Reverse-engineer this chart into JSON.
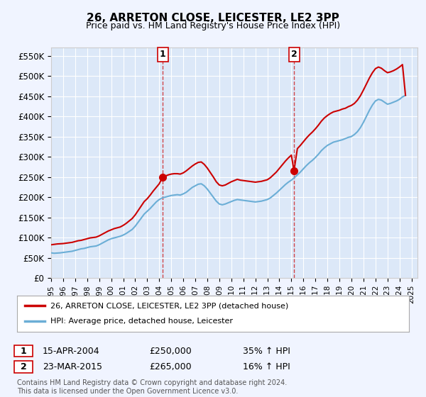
{
  "title": "26, ARRETON CLOSE, LEICESTER, LE2 3PP",
  "subtitle": "Price paid vs. HM Land Registry's House Price Index (HPI)",
  "background_color": "#f0f4ff",
  "plot_bg_color": "#dce8f8",
  "ylim": [
    0,
    570000
  ],
  "yticks": [
    0,
    50000,
    100000,
    150000,
    200000,
    250000,
    300000,
    350000,
    400000,
    450000,
    500000,
    550000
  ],
  "ytick_labels": [
    "£0",
    "£50K",
    "£100K",
    "£150K",
    "£200K",
    "£250K",
    "£300K",
    "£350K",
    "£400K",
    "£450K",
    "£500K",
    "£550K"
  ],
  "hpi_color": "#6baed6",
  "price_color": "#cc0000",
  "marker1_year": 2004.29,
  "marker2_year": 2015.22,
  "marker1_price": 250000,
  "marker2_price": 265000,
  "legend_label_price": "26, ARRETON CLOSE, LEICESTER, LE2 3PP (detached house)",
  "legend_label_hpi": "HPI: Average price, detached house, Leicester",
  "table_row1": [
    "1",
    "15-APR-2004",
    "£250,000",
    "35% ↑ HPI"
  ],
  "table_row2": [
    "2",
    "23-MAR-2015",
    "£265,000",
    "16% ↑ HPI"
  ],
  "footnote": "Contains HM Land Registry data © Crown copyright and database right 2024.\nThis data is licensed under the Open Government Licence v3.0.",
  "hpi_data_x": [
    1995.0,
    1995.25,
    1995.5,
    1995.75,
    1996.0,
    1996.25,
    1996.5,
    1996.75,
    1997.0,
    1997.25,
    1997.5,
    1997.75,
    1998.0,
    1998.25,
    1998.5,
    1998.75,
    1999.0,
    1999.25,
    1999.5,
    1999.75,
    2000.0,
    2000.25,
    2000.5,
    2000.75,
    2001.0,
    2001.25,
    2001.5,
    2001.75,
    2002.0,
    2002.25,
    2002.5,
    2002.75,
    2003.0,
    2003.25,
    2003.5,
    2003.75,
    2004.0,
    2004.25,
    2004.5,
    2004.75,
    2005.0,
    2005.25,
    2005.5,
    2005.75,
    2006.0,
    2006.25,
    2006.5,
    2006.75,
    2007.0,
    2007.25,
    2007.5,
    2007.75,
    2008.0,
    2008.25,
    2008.5,
    2008.75,
    2009.0,
    2009.25,
    2009.5,
    2009.75,
    2010.0,
    2010.25,
    2010.5,
    2010.75,
    2011.0,
    2011.25,
    2011.5,
    2011.75,
    2012.0,
    2012.25,
    2012.5,
    2012.75,
    2013.0,
    2013.25,
    2013.5,
    2013.75,
    2014.0,
    2014.25,
    2014.5,
    2014.75,
    2015.0,
    2015.25,
    2015.5,
    2015.75,
    2016.0,
    2016.25,
    2016.5,
    2016.75,
    2017.0,
    2017.25,
    2017.5,
    2017.75,
    2018.0,
    2018.25,
    2018.5,
    2018.75,
    2019.0,
    2019.25,
    2019.5,
    2019.75,
    2020.0,
    2020.25,
    2020.5,
    2020.75,
    2021.0,
    2021.25,
    2021.5,
    2021.75,
    2022.0,
    2022.25,
    2022.5,
    2022.75,
    2023.0,
    2023.25,
    2023.5,
    2023.75,
    2024.0,
    2024.25,
    2024.5
  ],
  "hpi_data_y": [
    62000,
    61000,
    61500,
    62000,
    63000,
    64000,
    65000,
    66000,
    68000,
    70000,
    72000,
    73000,
    75000,
    77000,
    78000,
    79000,
    82000,
    86000,
    90000,
    94000,
    97000,
    99000,
    101000,
    103000,
    106000,
    110000,
    115000,
    120000,
    128000,
    138000,
    148000,
    158000,
    165000,
    172000,
    180000,
    188000,
    194000,
    198000,
    200000,
    202000,
    204000,
    205000,
    206000,
    205000,
    208000,
    212000,
    218000,
    224000,
    228000,
    232000,
    233000,
    228000,
    220000,
    210000,
    200000,
    190000,
    183000,
    181000,
    183000,
    186000,
    189000,
    192000,
    194000,
    193000,
    192000,
    191000,
    190000,
    189000,
    188000,
    189000,
    190000,
    192000,
    194000,
    198000,
    204000,
    210000,
    217000,
    224000,
    231000,
    237000,
    242000,
    248000,
    255000,
    262000,
    270000,
    278000,
    285000,
    291000,
    298000,
    306000,
    315000,
    322000,
    328000,
    332000,
    336000,
    338000,
    340000,
    342000,
    345000,
    348000,
    350000,
    355000,
    362000,
    372000,
    385000,
    400000,
    415000,
    428000,
    438000,
    442000,
    440000,
    435000,
    430000,
    432000,
    435000,
    438000,
    442000,
    448000,
    452000
  ],
  "price_data_x": [
    1995.0,
    1995.25,
    1995.5,
    1995.75,
    1996.0,
    1996.25,
    1996.5,
    1996.75,
    1997.0,
    1997.25,
    1997.5,
    1997.75,
    1998.0,
    1998.25,
    1998.5,
    1998.75,
    1999.0,
    1999.25,
    1999.5,
    1999.75,
    2000.0,
    2000.25,
    2000.5,
    2000.75,
    2001.0,
    2001.25,
    2001.5,
    2001.75,
    2002.0,
    2002.25,
    2002.5,
    2002.75,
    2003.0,
    2003.25,
    2003.5,
    2003.75,
    2004.0,
    2004.29,
    2004.5,
    2004.75,
    2005.0,
    2005.25,
    2005.5,
    2005.75,
    2006.0,
    2006.25,
    2006.5,
    2006.75,
    2007.0,
    2007.25,
    2007.5,
    2007.75,
    2008.0,
    2008.25,
    2008.5,
    2008.75,
    2009.0,
    2009.25,
    2009.5,
    2009.75,
    2010.0,
    2010.25,
    2010.5,
    2010.75,
    2011.0,
    2011.25,
    2011.5,
    2011.75,
    2012.0,
    2012.25,
    2012.5,
    2012.75,
    2013.0,
    2013.25,
    2013.5,
    2013.75,
    2014.0,
    2014.25,
    2014.5,
    2014.75,
    2015.0,
    2015.22,
    2015.5,
    2015.75,
    2016.0,
    2016.25,
    2016.5,
    2016.75,
    2017.0,
    2017.25,
    2017.5,
    2017.75,
    2018.0,
    2018.25,
    2018.5,
    2018.75,
    2019.0,
    2019.25,
    2019.5,
    2019.75,
    2020.0,
    2020.25,
    2020.5,
    2020.75,
    2021.0,
    2021.25,
    2021.5,
    2021.75,
    2022.0,
    2022.25,
    2022.5,
    2022.75,
    2023.0,
    2023.25,
    2023.5,
    2023.75,
    2024.0,
    2024.25,
    2024.5
  ],
  "price_data_y": [
    82000,
    83000,
    84000,
    84500,
    85000,
    86000,
    87000,
    88000,
    90000,
    92000,
    93000,
    95000,
    97000,
    99000,
    100000,
    101000,
    104000,
    108000,
    112000,
    116000,
    119000,
    122000,
    124000,
    126000,
    130000,
    135000,
    141000,
    147000,
    156000,
    167000,
    178000,
    189000,
    196000,
    205000,
    215000,
    224000,
    233000,
    250000,
    252000,
    255000,
    257000,
    258000,
    258000,
    257000,
    260000,
    265000,
    271000,
    277000,
    282000,
    286000,
    287000,
    281000,
    272000,
    261000,
    250000,
    238000,
    230000,
    228000,
    230000,
    234000,
    238000,
    241000,
    244000,
    242000,
    241000,
    240000,
    239000,
    238000,
    237000,
    238000,
    239000,
    241000,
    243000,
    248000,
    255000,
    262000,
    271000,
    280000,
    289000,
    297000,
    304000,
    265000,
    320000,
    328000,
    337000,
    346000,
    354000,
    361000,
    369000,
    378000,
    388000,
    396000,
    402000,
    407000,
    411000,
    413000,
    415000,
    418000,
    420000,
    424000,
    427000,
    432000,
    440000,
    451000,
    465000,
    480000,
    495000,
    508000,
    518000,
    522000,
    519000,
    513000,
    508000,
    510000,
    513000,
    517000,
    522000,
    528000,
    452000
  ]
}
